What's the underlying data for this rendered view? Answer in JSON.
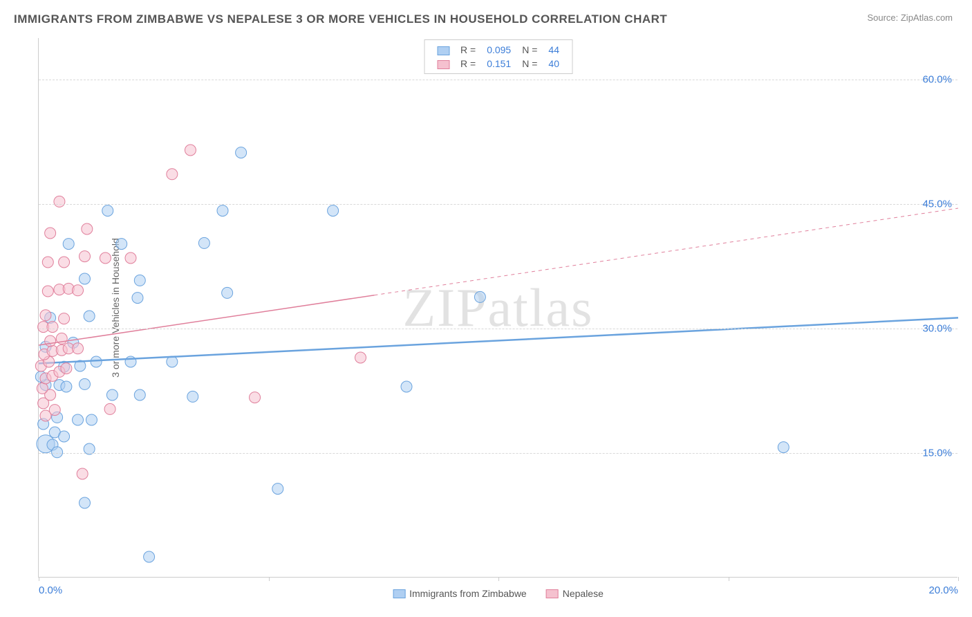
{
  "title": "IMMIGRANTS FROM ZIMBABWE VS NEPALESE 3 OR MORE VEHICLES IN HOUSEHOLD CORRELATION CHART",
  "source": "Source: ZipAtlas.com",
  "watermark": "ZIPatlas",
  "chart": {
    "type": "scatter",
    "ylabel": "3 or more Vehicles in Household",
    "xlim": [
      0,
      20
    ],
    "ylim": [
      0,
      65
    ],
    "x_ticks": [
      0,
      5,
      10,
      15,
      20
    ],
    "x_tick_labels": [
      "0.0%",
      "",
      "",
      "",
      "20.0%"
    ],
    "y_gridlines": [
      15,
      30,
      45,
      60
    ],
    "y_tick_labels": [
      "15.0%",
      "30.0%",
      "45.0%",
      "60.0%"
    ],
    "grid_color": "#d8d8d8",
    "axis_color": "#cccccc",
    "tick_label_color": "#3b7dd8",
    "ylabel_color": "#666666",
    "background_color": "#ffffff",
    "series": [
      {
        "name": "Immigrants from Zimbabwe",
        "color_fill": "#afcff2",
        "color_stroke": "#6aa3de",
        "marker_radius": 8,
        "fill_opacity": 0.55,
        "R": "0.095",
        "N": "44",
        "trend": {
          "x1": 0,
          "y1": 25.8,
          "x2": 20,
          "y2": 31.3,
          "solid_until_x": 20,
          "stroke_width": 2.5
        },
        "points": [
          {
            "x": 0.15,
            "y": 16.1,
            "r": 13
          },
          {
            "x": 0.3,
            "y": 16.0
          },
          {
            "x": 0.35,
            "y": 17.5
          },
          {
            "x": 0.55,
            "y": 17.0
          },
          {
            "x": 0.1,
            "y": 18.5
          },
          {
            "x": 0.4,
            "y": 19.3
          },
          {
            "x": 0.85,
            "y": 19.0
          },
          {
            "x": 1.15,
            "y": 19.0
          },
          {
            "x": 0.15,
            "y": 23.2
          },
          {
            "x": 0.45,
            "y": 23.2
          },
          {
            "x": 0.6,
            "y": 23.0
          },
          {
            "x": 1.0,
            "y": 23.3
          },
          {
            "x": 1.6,
            "y": 22.0
          },
          {
            "x": 2.2,
            "y": 22.0
          },
          {
            "x": 0.05,
            "y": 24.2
          },
          {
            "x": 0.55,
            "y": 25.4
          },
          {
            "x": 0.9,
            "y": 25.5
          },
          {
            "x": 1.25,
            "y": 26.0
          },
          {
            "x": 2.0,
            "y": 26.0
          },
          {
            "x": 2.9,
            "y": 26.0
          },
          {
            "x": 0.15,
            "y": 27.8
          },
          {
            "x": 0.75,
            "y": 28.3
          },
          {
            "x": 0.25,
            "y": 31.3
          },
          {
            "x": 1.1,
            "y": 31.5
          },
          {
            "x": 2.15,
            "y": 33.7
          },
          {
            "x": 1.0,
            "y": 36.0
          },
          {
            "x": 2.2,
            "y": 35.8
          },
          {
            "x": 4.1,
            "y": 34.3
          },
          {
            "x": 9.6,
            "y": 33.8
          },
          {
            "x": 0.65,
            "y": 40.2
          },
          {
            "x": 1.8,
            "y": 40.2
          },
          {
            "x": 3.6,
            "y": 40.3
          },
          {
            "x": 1.5,
            "y": 44.2
          },
          {
            "x": 4.0,
            "y": 44.2
          },
          {
            "x": 6.4,
            "y": 44.2
          },
          {
            "x": 4.4,
            "y": 51.2
          },
          {
            "x": 0.4,
            "y": 15.1
          },
          {
            "x": 1.1,
            "y": 15.5
          },
          {
            "x": 3.35,
            "y": 21.8
          },
          {
            "x": 8.0,
            "y": 23.0
          },
          {
            "x": 1.0,
            "y": 9.0
          },
          {
            "x": 5.2,
            "y": 10.7
          },
          {
            "x": 2.4,
            "y": 2.5
          },
          {
            "x": 16.2,
            "y": 15.7
          }
        ]
      },
      {
        "name": "Nepalese",
        "color_fill": "#f5c1cf",
        "color_stroke": "#e07f9b",
        "marker_radius": 8,
        "fill_opacity": 0.55,
        "R": "0.151",
        "N": "40",
        "trend": {
          "x1": 0,
          "y1": 28.0,
          "x2": 20,
          "y2": 44.5,
          "solid_until_x": 7.3,
          "stroke_width": 1.5
        },
        "points": [
          {
            "x": 0.1,
            "y": 21.0
          },
          {
            "x": 0.25,
            "y": 22.0
          },
          {
            "x": 0.08,
            "y": 22.8
          },
          {
            "x": 0.15,
            "y": 24.0
          },
          {
            "x": 0.3,
            "y": 24.3
          },
          {
            "x": 0.05,
            "y": 25.5
          },
          {
            "x": 0.22,
            "y": 26.0
          },
          {
            "x": 0.45,
            "y": 24.8
          },
          {
            "x": 0.6,
            "y": 25.2
          },
          {
            "x": 0.12,
            "y": 26.9
          },
          {
            "x": 0.3,
            "y": 27.3
          },
          {
            "x": 0.5,
            "y": 27.4
          },
          {
            "x": 0.65,
            "y": 27.6
          },
          {
            "x": 0.85,
            "y": 27.6
          },
          {
            "x": 0.25,
            "y": 28.5
          },
          {
            "x": 0.5,
            "y": 28.8
          },
          {
            "x": 0.1,
            "y": 30.2
          },
          {
            "x": 0.3,
            "y": 30.2
          },
          {
            "x": 0.15,
            "y": 31.6
          },
          {
            "x": 0.2,
            "y": 34.5
          },
          {
            "x": 0.45,
            "y": 34.7
          },
          {
            "x": 0.65,
            "y": 34.8
          },
          {
            "x": 0.85,
            "y": 34.6
          },
          {
            "x": 0.2,
            "y": 38.0
          },
          {
            "x": 0.55,
            "y": 38.0
          },
          {
            "x": 1.0,
            "y": 38.7
          },
          {
            "x": 1.45,
            "y": 38.5
          },
          {
            "x": 2.0,
            "y": 38.5
          },
          {
            "x": 0.25,
            "y": 41.5
          },
          {
            "x": 1.05,
            "y": 42.0
          },
          {
            "x": 0.45,
            "y": 45.3
          },
          {
            "x": 2.9,
            "y": 48.6
          },
          {
            "x": 3.3,
            "y": 51.5
          },
          {
            "x": 1.55,
            "y": 20.3
          },
          {
            "x": 4.7,
            "y": 21.7
          },
          {
            "x": 7.0,
            "y": 26.5
          },
          {
            "x": 0.95,
            "y": 12.5
          },
          {
            "x": 0.15,
            "y": 19.5
          },
          {
            "x": 0.35,
            "y": 20.2
          },
          {
            "x": 0.55,
            "y": 31.2
          }
        ]
      }
    ],
    "legend_top": {
      "rows": [
        {
          "swatch_fill": "#afcff2",
          "swatch_stroke": "#6aa3de",
          "r_label": "R =",
          "r_val": "0.095",
          "n_label": "N =",
          "n_val": "44"
        },
        {
          "swatch_fill": "#f5c1cf",
          "swatch_stroke": "#e07f9b",
          "r_label": "R =",
          "r_val": "0.151",
          "n_label": "N =",
          "n_val": "40"
        }
      ]
    },
    "legend_bottom": [
      {
        "swatch_fill": "#afcff2",
        "swatch_stroke": "#6aa3de",
        "label": "Immigrants from Zimbabwe"
      },
      {
        "swatch_fill": "#f5c1cf",
        "swatch_stroke": "#e07f9b",
        "label": "Nepalese"
      }
    ]
  }
}
